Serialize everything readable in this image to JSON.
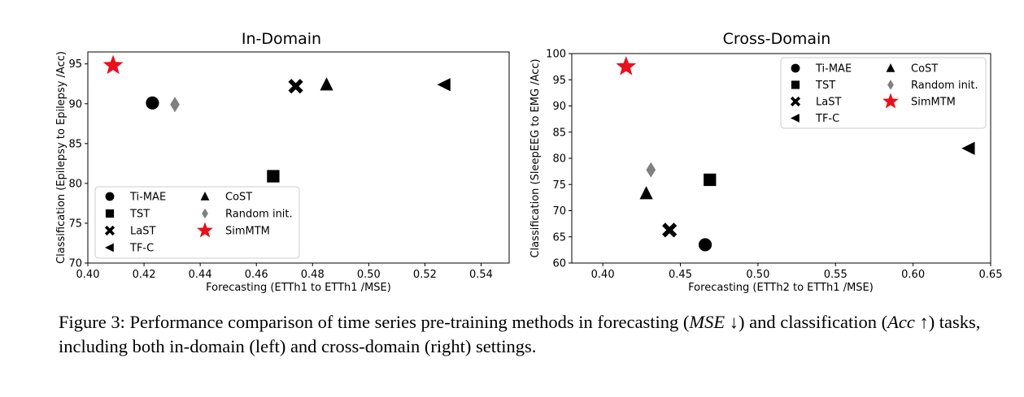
{
  "chart_data": [
    {
      "type": "scatter",
      "title": "In-Domain",
      "xlabel": "Forecasting (ETTh1 to ETTh1 /MSE)",
      "ylabel": "Classification (Epilepsy to Epilepsy /Acc)",
      "xlim": [
        0.4,
        0.55
      ],
      "ylim": [
        70,
        96.5
      ],
      "xticks": [
        "0.40",
        "0.42",
        "0.44",
        "0.46",
        "0.48",
        "0.50",
        "0.52",
        "0.54"
      ],
      "yticks": [
        "70",
        "75",
        "80",
        "85",
        "90",
        "95"
      ],
      "legend_position": "bottom-left",
      "legend_columns": [
        [
          "Ti-MAE",
          "TST",
          "LaST",
          "TF-C"
        ],
        [
          "CoST",
          "Random init.",
          "SimMTM"
        ]
      ],
      "series": [
        {
          "name": "Ti-MAE",
          "marker": "circle",
          "color": "#000000",
          "x": 0.423,
          "y": 90.1
        },
        {
          "name": "TST",
          "marker": "square",
          "color": "#000000",
          "x": 0.466,
          "y": 80.9
        },
        {
          "name": "LaST",
          "marker": "x",
          "color": "#000000",
          "x": 0.474,
          "y": 92.2
        },
        {
          "name": "TF-C",
          "marker": "triangle-left",
          "color": "#000000",
          "x": 0.527,
          "y": 92.4
        },
        {
          "name": "CoST",
          "marker": "triangle-up",
          "color": "#000000",
          "x": 0.485,
          "y": 92.4
        },
        {
          "name": "Random init.",
          "marker": "diamond",
          "color": "#808080",
          "x": 0.431,
          "y": 89.9
        },
        {
          "name": "SimMTM",
          "marker": "star",
          "color": "#e8101c",
          "x": 0.409,
          "y": 94.8
        }
      ]
    },
    {
      "type": "scatter",
      "title": "Cross-Domain",
      "xlabel": "Forecasting (ETTh2 to ETTh1 /MSE)",
      "ylabel": "Classification (SleepEEG to EMG /Acc)",
      "xlim": [
        0.38,
        0.65
      ],
      "ylim": [
        60,
        100
      ],
      "xticks": [
        "0.40",
        "0.45",
        "0.50",
        "0.55",
        "0.60",
        "0.65"
      ],
      "yticks": [
        "60",
        "65",
        "70",
        "75",
        "80",
        "85",
        "90",
        "95",
        "100"
      ],
      "legend_position": "top-right",
      "legend_columns": [
        [
          "Ti-MAE",
          "TST",
          "LaST",
          "TF-C"
        ],
        [
          "CoST",
          "Random init.",
          "SimMTM"
        ]
      ],
      "series": [
        {
          "name": "Ti-MAE",
          "marker": "circle",
          "color": "#000000",
          "x": 0.466,
          "y": 63.5
        },
        {
          "name": "TST",
          "marker": "square",
          "color": "#000000",
          "x": 0.469,
          "y": 75.9
        },
        {
          "name": "LaST",
          "marker": "x",
          "color": "#000000",
          "x": 0.443,
          "y": 66.3
        },
        {
          "name": "TF-C",
          "marker": "triangle-left",
          "color": "#000000",
          "x": 0.636,
          "y": 81.9
        },
        {
          "name": "CoST",
          "marker": "triangle-up",
          "color": "#000000",
          "x": 0.428,
          "y": 73.3
        },
        {
          "name": "Random init.",
          "marker": "diamond",
          "color": "#808080",
          "x": 0.431,
          "y": 77.8
        },
        {
          "name": "SimMTM",
          "marker": "star",
          "color": "#e8101c",
          "x": 0.415,
          "y": 97.5
        }
      ]
    }
  ],
  "caption": {
    "p1": "Figure 3: Performance comparison of time series pre-training methods in forecasting (",
    "mse": "MSE",
    "p2": " ↓) and classification (",
    "acc": "Acc",
    "p3": " ↑) tasks, including both in-domain (left) and cross-domain (right) settings."
  }
}
